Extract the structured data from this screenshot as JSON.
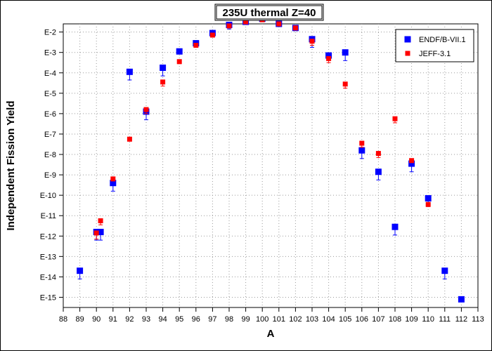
{
  "chart_data": {
    "type": "scatter",
    "title": "235U thermal Z=40",
    "xlabel": "A",
    "ylabel": "Independent Fission Yield",
    "xlim": [
      88,
      113
    ],
    "ylim": [
      -15.5,
      -1.6
    ],
    "yscale": "log",
    "x_ticks": [
      88,
      89,
      90,
      91,
      92,
      93,
      94,
      95,
      96,
      97,
      98,
      99,
      100,
      101,
      102,
      103,
      104,
      105,
      106,
      107,
      108,
      109,
      110,
      111,
      112,
      113
    ],
    "x_tick_labels": [
      "88",
      "89",
      "90",
      "91",
      "92",
      "93",
      "94",
      "95",
      "96",
      "97",
      "98",
      "99",
      "100",
      "101",
      "102",
      "103",
      "104",
      "105",
      "106",
      "107",
      "108",
      "109",
      "110",
      "111",
      "112",
      "113"
    ],
    "y_ticks": [
      -2,
      -3,
      -4,
      -5,
      -6,
      -7,
      -8,
      -9,
      -10,
      -11,
      -12,
      -13,
      -14,
      -15
    ],
    "y_tick_labels": [
      "E-2",
      "E-3",
      "E-4",
      "E-5",
      "E-6",
      "E-7",
      "E-8",
      "E-9",
      "E-10",
      "E-11",
      "E-12",
      "E-13",
      "E-14",
      "E-15"
    ],
    "grid": true,
    "legend_position": "top-right",
    "series": [
      {
        "name": "ENDF/B-VII.1",
        "color": "#0000ff",
        "marker": "square",
        "points": [
          {
            "x": 89,
            "y": -13.7,
            "err": 0.4
          },
          {
            "x": 90,
            "y": -11.8,
            "err": 0.4
          },
          {
            "x": 90.25,
            "y": -11.8,
            "err": 0.4
          },
          {
            "x": 91,
            "y": -9.4,
            "err": 0.4
          },
          {
            "x": 92,
            "y": -3.95,
            "err": 0.4
          },
          {
            "x": 93,
            "y": -5.9,
            "err": 0.4
          },
          {
            "x": 94,
            "y": -3.75,
            "err": 0.4
          },
          {
            "x": 95,
            "y": -2.95,
            "err": 0
          },
          {
            "x": 96,
            "y": -2.55,
            "err": 0
          },
          {
            "x": 97,
            "y": -2.05,
            "err": 0
          },
          {
            "x": 98,
            "y": -1.65,
            "err": 0.2
          },
          {
            "x": 99,
            "y": -1.5,
            "err": 0
          },
          {
            "x": 100,
            "y": -1.35,
            "err": 0
          },
          {
            "x": 101,
            "y": -1.6,
            "err": 0
          },
          {
            "x": 102,
            "y": -1.8,
            "err": 0
          },
          {
            "x": 103,
            "y": -2.35,
            "err": 0.4
          },
          {
            "x": 104,
            "y": -3.15,
            "err": 0
          },
          {
            "x": 105,
            "y": -3.0,
            "err": 0.4
          },
          {
            "x": 106,
            "y": -7.8,
            "err": 0.4
          },
          {
            "x": 107,
            "y": -8.85,
            "err": 0.4
          },
          {
            "x": 108,
            "y": -11.55,
            "err": 0.4
          },
          {
            "x": 109,
            "y": -8.45,
            "err": 0.4
          },
          {
            "x": 110,
            "y": -10.15,
            "err": 0.4
          },
          {
            "x": 111,
            "y": -13.7,
            "err": 0.4
          },
          {
            "x": 112,
            "y": -15.1,
            "err": 0
          }
        ]
      },
      {
        "name": "JEFF-3.1",
        "color": "#ff0000",
        "marker": "square",
        "points": [
          {
            "x": 90,
            "y": -11.85,
            "err": 0.3
          },
          {
            "x": 90.25,
            "y": -11.25,
            "err": 0.2
          },
          {
            "x": 91,
            "y": -9.2,
            "err": 0
          },
          {
            "x": 92,
            "y": -7.25,
            "err": 0.1
          },
          {
            "x": 93,
            "y": -5.8,
            "err": 0.2
          },
          {
            "x": 94,
            "y": -4.45,
            "err": 0.2
          },
          {
            "x": 95,
            "y": -3.45,
            "err": 0.1
          },
          {
            "x": 96,
            "y": -2.65,
            "err": 0.1
          },
          {
            "x": 97,
            "y": -2.15,
            "err": 0.1
          },
          {
            "x": 98,
            "y": -1.7,
            "err": 0
          },
          {
            "x": 99,
            "y": -1.5,
            "err": 0
          },
          {
            "x": 100,
            "y": -1.4,
            "err": 0
          },
          {
            "x": 101,
            "y": -1.6,
            "err": 0
          },
          {
            "x": 102,
            "y": -1.8,
            "err": 0
          },
          {
            "x": 103,
            "y": -2.45,
            "err": 0.2
          },
          {
            "x": 104,
            "y": -3.3,
            "err": 0.2
          },
          {
            "x": 105,
            "y": -4.55,
            "err": 0.2
          },
          {
            "x": 106,
            "y": -7.45,
            "err": 0.2
          },
          {
            "x": 107,
            "y": -7.95,
            "err": 0.2
          },
          {
            "x": 108,
            "y": -6.25,
            "err": 0.2
          },
          {
            "x": 109,
            "y": -8.3,
            "err": 0.1
          },
          {
            "x": 110,
            "y": -10.45,
            "err": 0.1
          }
        ]
      }
    ]
  }
}
